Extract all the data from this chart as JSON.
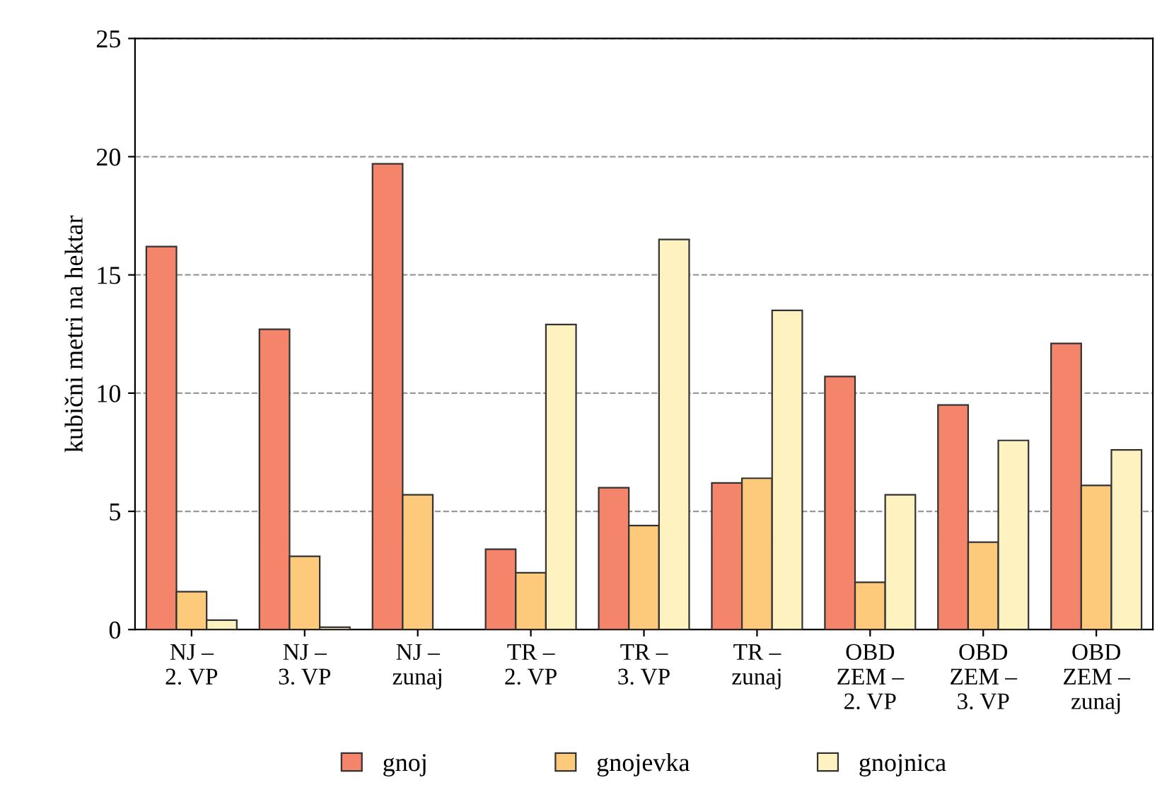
{
  "chart_data": {
    "type": "bar",
    "ylabel": "kubični metri na hektar",
    "categories": [
      "NJ –\n2. VP",
      "NJ –\n3. VP",
      "NJ –\nzunaj",
      "TR –\n2. VP",
      "TR –\n3. VP",
      "TR –\nzunaj",
      "OBD\nZEM –\n2. VP",
      "OBD\nZEM –\n3. VP",
      "OBD\nZEM –\nzunaj"
    ],
    "series": [
      {
        "name": "gnoj",
        "color": "#f4846a",
        "values": [
          16.2,
          12.7,
          19.7,
          3.4,
          6.0,
          6.2,
          10.7,
          9.5,
          12.1
        ]
      },
      {
        "name": "gnojevka",
        "color": "#fdc97a",
        "values": [
          1.6,
          3.1,
          5.7,
          2.4,
          4.4,
          6.4,
          2.0,
          3.7,
          6.1
        ]
      },
      {
        "name": "gnojnica",
        "color": "#fef2c0",
        "values": [
          0.4,
          0.1,
          null,
          12.9,
          16.5,
          13.5,
          5.7,
          8.0,
          7.6
        ]
      }
    ],
    "ylim": [
      0,
      25
    ],
    "yticks": [
      0,
      5,
      10,
      15,
      20,
      25
    ],
    "grid": "y",
    "legend": "bottom"
  }
}
